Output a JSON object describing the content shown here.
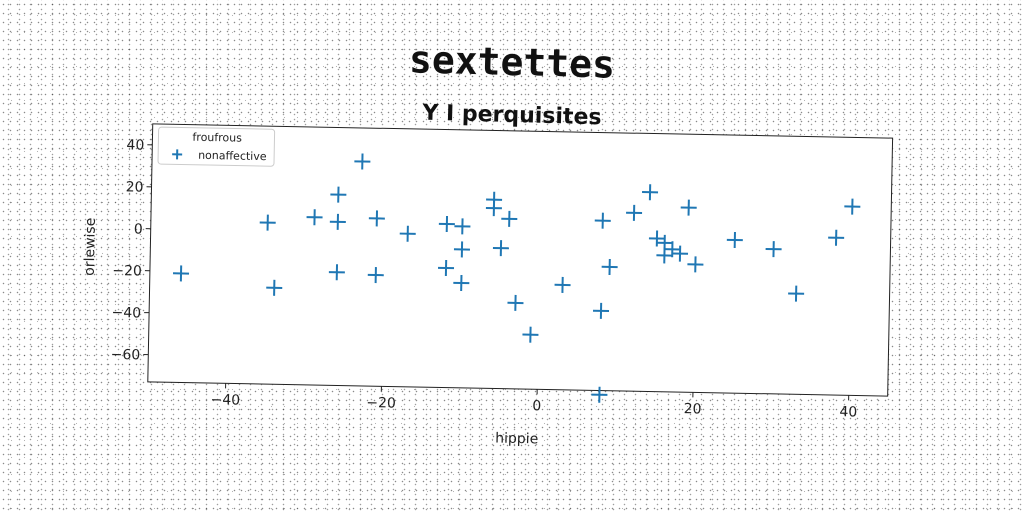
{
  "title": "sextettes",
  "subtitle": "Y I perquisites",
  "chart_data": {
    "type": "scatter",
    "xlabel": "hippie",
    "ylabel": "orlewise",
    "xlim": [
      -50,
      45
    ],
    "ylim": [
      -73,
      50
    ],
    "xticks": [
      -40,
      -20,
      0,
      20,
      40
    ],
    "yticks": [
      -60,
      -40,
      -20,
      0,
      20,
      40
    ],
    "xtick_labels": [
      "−40",
      "−20",
      "0",
      "20",
      "40"
    ],
    "ytick_labels": [
      "−60",
      "−40",
      "−20",
      "0",
      "20",
      "40"
    ],
    "grid": false,
    "legend": {
      "placement": "top-left",
      "entries": [
        "froufrous",
        "nonaffective"
      ]
    },
    "colors": {
      "nonaffective": "#1f77b4"
    },
    "series": [
      {
        "name": "froufrous",
        "marker": "none",
        "points": []
      },
      {
        "name": "nonaffective",
        "marker": "plus",
        "points": [
          {
            "x": -46,
            "y": -21
          },
          {
            "x": -35,
            "y": 4
          },
          {
            "x": -34,
            "y": -27
          },
          {
            "x": -29,
            "y": 7
          },
          {
            "x": -26,
            "y": 18
          },
          {
            "x": -26,
            "y": 5
          },
          {
            "x": -26,
            "y": -19
          },
          {
            "x": -23,
            "y": 34
          },
          {
            "x": -21,
            "y": 7
          },
          {
            "x": -21,
            "y": -20
          },
          {
            "x": -17,
            "y": 0
          },
          {
            "x": -12,
            "y": 5
          },
          {
            "x": -12,
            "y": -16
          },
          {
            "x": -10,
            "y": 4
          },
          {
            "x": -10,
            "y": -7
          },
          {
            "x": -10,
            "y": -23
          },
          {
            "x": -6,
            "y": 17
          },
          {
            "x": -6,
            "y": 13
          },
          {
            "x": -5,
            "y": -6
          },
          {
            "x": -4,
            "y": 8
          },
          {
            "x": -3,
            "y": -32
          },
          {
            "x": -1,
            "y": -47
          },
          {
            "x": 3,
            "y": -23
          },
          {
            "x": 8,
            "y": 8
          },
          {
            "x": 8,
            "y": -35
          },
          {
            "x": 8,
            "y": -75
          },
          {
            "x": 9,
            "y": -14
          },
          {
            "x": 12,
            "y": 12
          },
          {
            "x": 14,
            "y": 22
          },
          {
            "x": 15,
            "y": 0
          },
          {
            "x": 16,
            "y": -2
          },
          {
            "x": 16,
            "y": -8
          },
          {
            "x": 17,
            "y": -5
          },
          {
            "x": 18,
            "y": -7
          },
          {
            "x": 19,
            "y": 15
          },
          {
            "x": 20,
            "y": -12
          },
          {
            "x": 25,
            "y": 0
          },
          {
            "x": 30,
            "y": -4
          },
          {
            "x": 33,
            "y": -25
          },
          {
            "x": 38,
            "y": 2
          },
          {
            "x": 40,
            "y": 17
          }
        ]
      }
    ]
  }
}
